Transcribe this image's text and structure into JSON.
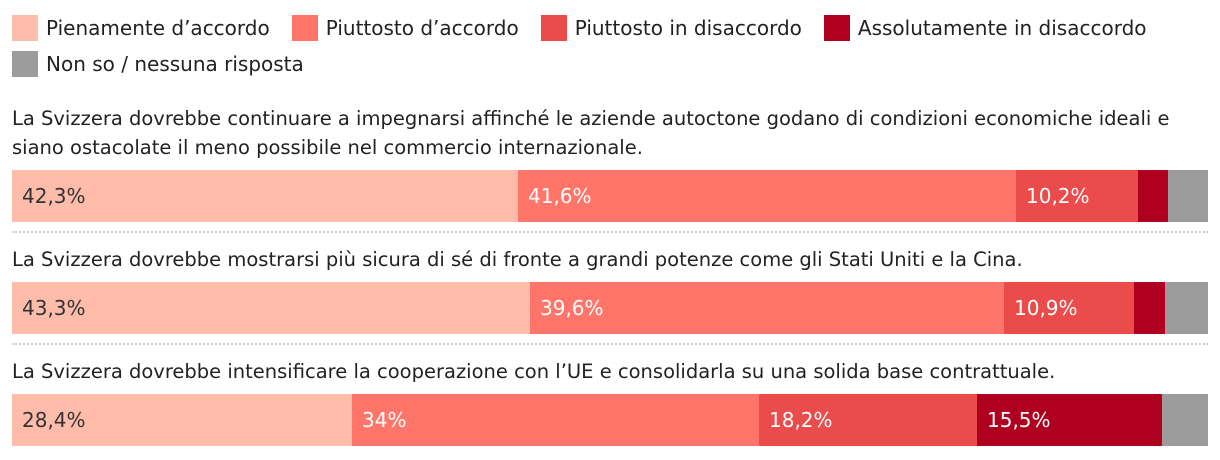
{
  "chart_data": {
    "type": "bar",
    "orientation": "horizontal",
    "stacked": "100%",
    "legend_position": "top",
    "series": [
      {
        "name": "Pienamente d’accordo",
        "color": "#ffbcab"
      },
      {
        "name": "Piuttosto d’accordo",
        "color": "#ff7569"
      },
      {
        "name": "Piuttosto in disaccordo",
        "color": "#ea4b4b"
      },
      {
        "name": "Assolutamente in disaccordo",
        "color": "#b00020"
      },
      {
        "name": "Non so / nessuna risposta",
        "color": "#9c9c9c"
      }
    ],
    "categories": [
      "La Svizzera dovrebbe continuare a impegnarsi affinché le aziende autoctone godano di condizioni economiche ideali e siano ostacolate il meno possibile nel commercio internazionale.",
      "La Svizzera dovrebbe mostrarsi più sicura di sé di fronte a grandi potenze come gli Stati Uniti e la Cina.",
      "La Svizzera dovrebbe intensificare la cooperazione con l’UE e consolidarla su una solida base contrattuale."
    ],
    "values": [
      [
        42.3,
        41.6,
        10.2,
        2.5,
        3.4
      ],
      [
        43.3,
        39.6,
        10.9,
        2.6,
        3.6
      ],
      [
        28.4,
        34.0,
        18.2,
        15.5,
        3.9
      ]
    ],
    "labels": [
      [
        "42,3%",
        "41,6%",
        "10,2%",
        "",
        ""
      ],
      [
        "43,3%",
        "39,6%",
        "10,9%",
        "",
        ""
      ],
      [
        "28,4%",
        "34%",
        "18,2%",
        "15,5%",
        ""
      ]
    ],
    "label_colors": [
      "#333333",
      "#ffffff",
      "#ffffff",
      "#ffffff",
      "#ffffff"
    ]
  }
}
